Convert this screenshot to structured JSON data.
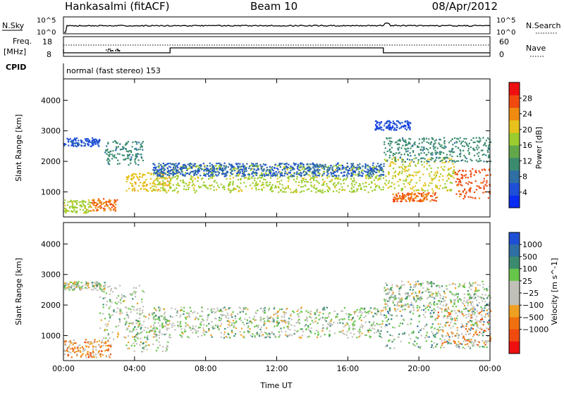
{
  "header": {
    "station": "Hankasalmi (fitACF)",
    "beam": "Beam 10",
    "date": "08/Apr/2012"
  },
  "top_panels": {
    "nsky_label": "N.Sky",
    "nsky_ticks": [
      "10^5",
      "10^0"
    ],
    "nsearch_label": "N.Search",
    "nsearch_ticks": [
      "10^5",
      "10^0"
    ],
    "freq_label": "Freq.",
    "freq_unit": "[MHz]",
    "freq_ticks": [
      "18",
      "8"
    ],
    "nave_label": "Nave",
    "nave_ticks": [
      "60",
      "0"
    ],
    "cpid_label": "CPID",
    "cpid_value": "normal (fast stereo) 153"
  },
  "chart_data": [
    {
      "type": "heatmap",
      "panel": "power",
      "ylabel": "Slant Range [km]",
      "yticks": [
        1000,
        2000,
        3000,
        4000
      ],
      "ylim": [
        180,
        4700
      ],
      "xlim": [
        0,
        24
      ],
      "color_label": "Power [dB]",
      "color_ticks": [
        4,
        8,
        12,
        16,
        20,
        24,
        28
      ],
      "color_range": [
        0,
        32
      ],
      "colors": [
        "#0a2cf0",
        "#1f4fd6",
        "#2f6fa3",
        "#3b8c6e",
        "#62a84a",
        "#9ccc2e",
        "#e6c21a",
        "#f08a10",
        "#f04a10",
        "#ee1010"
      ],
      "bands": [
        {
          "x": [
            0,
            2.0
          ],
          "center": 2650,
          "width": 140,
          "level": 4
        },
        {
          "x": [
            0,
            1.5
          ],
          "center": 550,
          "width": 220,
          "level": 18
        },
        {
          "x": [
            1.5,
            3.0
          ],
          "center": 600,
          "width": 200,
          "level": 26
        },
        {
          "x": [
            2.3,
            4.5
          ],
          "center": 2300,
          "width": 400,
          "level": 10
        },
        {
          "x": [
            3.5,
            6.0
          ],
          "center": 1350,
          "width": 300,
          "level": 22
        },
        {
          "x": [
            5.0,
            18.0
          ],
          "center": 1450,
          "width": 450,
          "level": 18
        },
        {
          "x": [
            5.0,
            18.0
          ],
          "center": 1750,
          "width": 220,
          "level": 6
        },
        {
          "x": [
            18.0,
            22.0
          ],
          "center": 1600,
          "width": 550,
          "level": 20
        },
        {
          "x": [
            18.5,
            21.0
          ],
          "center": 850,
          "width": 150,
          "level": 27
        },
        {
          "x": [
            22.0,
            24.0
          ],
          "center": 1300,
          "width": 500,
          "level": 28
        },
        {
          "x": [
            18.0,
            24.0
          ],
          "center": 2400,
          "width": 400,
          "level": 10
        },
        {
          "x": [
            17.5,
            19.5
          ],
          "center": 3200,
          "width": 150,
          "level": 3
        }
      ]
    },
    {
      "type": "heatmap",
      "panel": "velocity",
      "ylabel": "Slant Range [km]",
      "yticks": [
        1000,
        2000,
        3000,
        4000
      ],
      "ylim": [
        180,
        4700
      ],
      "xlim": [
        0,
        24
      ],
      "xlabel": "Time UT",
      "xticks": [
        "00:00",
        "04:00",
        "08:00",
        "12:00",
        "16:00",
        "20:00",
        "00:00"
      ],
      "xtick_hours": [
        0,
        4,
        8,
        12,
        16,
        20,
        24
      ],
      "color_label": "Velocity [m s^-1]",
      "color_ticks": [
        "1000",
        "500",
        "100",
        "25",
        "−25",
        "−100",
        "−500",
        "−1000"
      ],
      "colors": [
        "#1f4fd6",
        "#2f6fa3",
        "#3b8c6e",
        "#67c64a",
        "#c0c0b8",
        "#c0c0b8",
        "#f0a020",
        "#f07010",
        "#f04a10",
        "#ee1010"
      ],
      "bands": [
        {
          "x": [
            0,
            2.3
          ],
          "center": 2650,
          "width": 140,
          "level": 4
        },
        {
          "x": [
            0,
            2.7
          ],
          "center": 600,
          "width": 300,
          "level": 6
        },
        {
          "x": [
            2.0,
            4.5
          ],
          "center": 1800,
          "width": 900,
          "level": 4
        },
        {
          "x": [
            3.5,
            6.0
          ],
          "center": 1200,
          "width": 700,
          "level": 4
        },
        {
          "x": [
            5.0,
            18.0
          ],
          "center": 1450,
          "width": 500,
          "level": 4
        },
        {
          "x": [
            18.0,
            24.0
          ],
          "center": 1500,
          "width": 900,
          "level": 3
        },
        {
          "x": [
            21.0,
            24.0
          ],
          "center": 1300,
          "width": 600,
          "level": 6
        },
        {
          "x": [
            18.0,
            24.0
          ],
          "center": 2300,
          "width": 500,
          "level": 4
        }
      ]
    }
  ]
}
